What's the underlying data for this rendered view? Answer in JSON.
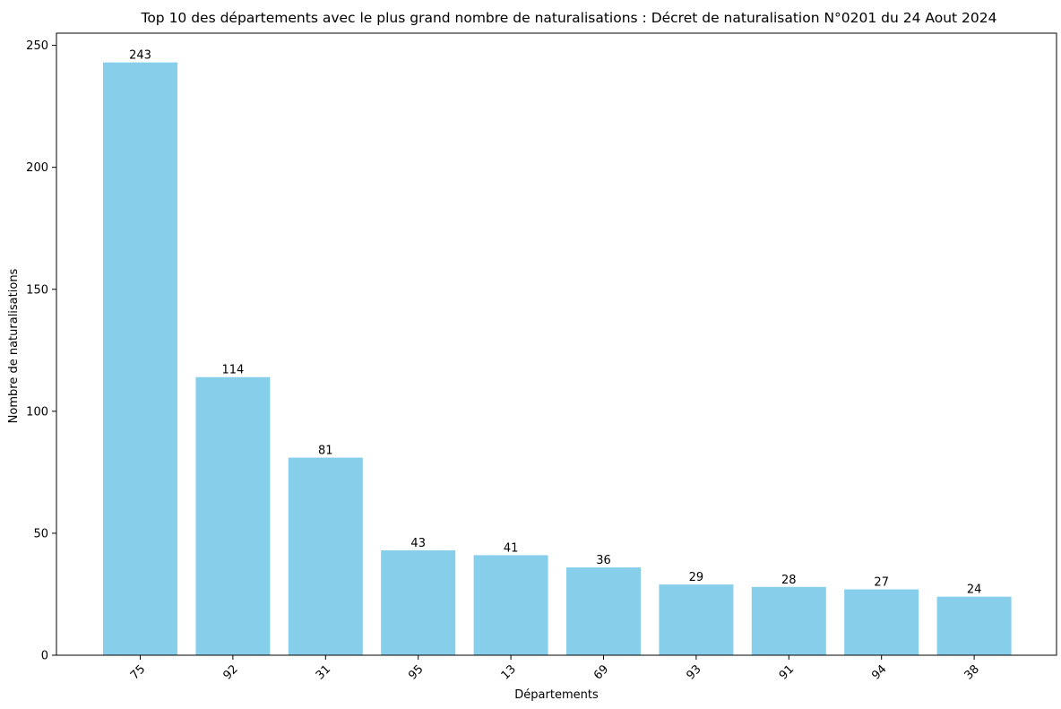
{
  "chart_data": {
    "type": "bar",
    "title": "Top 10 des départements avec le plus grand nombre de naturalisations : Décret de naturalisation N°0201 du 24 Aout 2024",
    "xlabel": "Départements",
    "ylabel": "Nombre de naturalisations",
    "categories": [
      "75",
      "92",
      "31",
      "95",
      "13",
      "69",
      "93",
      "91",
      "94",
      "38"
    ],
    "values": [
      243,
      114,
      81,
      43,
      41,
      36,
      29,
      28,
      27,
      24
    ],
    "ylim": [
      0,
      255
    ],
    "yticks": [
      0,
      50,
      100,
      150,
      200,
      250
    ],
    "bar_color": "#87ceeb",
    "grid": false,
    "data_labels": true,
    "xtick_rotation": 45
  }
}
